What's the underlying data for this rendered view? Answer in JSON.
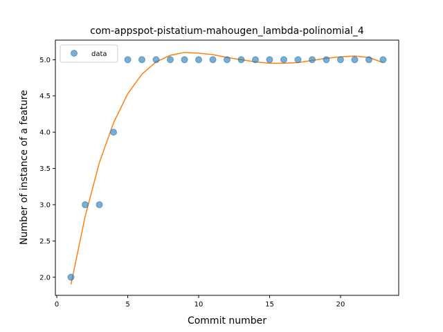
{
  "chart_data": {
    "type": "scatter",
    "title": "com-appspot-pistatium-mahougen_lambda-polinomial_4",
    "xlabel": "Commit number",
    "ylabel": "Number of instance of a feature",
    "xlim": [
      -0.1,
      24.1
    ],
    "ylim": [
      1.75,
      5.27
    ],
    "xticks": [
      0,
      5,
      10,
      15,
      20
    ],
    "yticks": [
      2.0,
      2.5,
      3.0,
      3.5,
      4.0,
      4.5,
      5.0
    ],
    "grid": false,
    "legend_position": "top-left",
    "series": [
      {
        "name": "data",
        "kind": "scatter",
        "color": "#1f77b4",
        "x": [
          1,
          2,
          3,
          4,
          5,
          6,
          7,
          8,
          9,
          10,
          11,
          12,
          13,
          14,
          15,
          16,
          17,
          18,
          19,
          20,
          21,
          22,
          23
        ],
        "y": [
          2,
          3,
          3,
          4,
          5,
          5,
          5,
          5,
          5,
          5,
          5,
          5,
          5,
          5,
          5,
          5,
          5,
          5,
          5,
          5,
          5,
          5,
          5
        ]
      },
      {
        "kind": "line",
        "color": "#ff7f0e",
        "x": [
          1,
          2,
          3,
          4,
          5,
          6,
          7,
          8,
          9,
          10,
          11,
          12,
          13,
          14,
          15,
          16,
          17,
          18,
          19,
          20,
          21,
          22,
          23
        ],
        "y": [
          1.9,
          2.84,
          3.58,
          4.13,
          4.53,
          4.8,
          4.97,
          5.06,
          5.1,
          5.09,
          5.07,
          5.03,
          5.0,
          4.97,
          4.95,
          4.95,
          4.96,
          4.99,
          5.02,
          5.04,
          5.05,
          5.03,
          4.96
        ]
      }
    ]
  }
}
